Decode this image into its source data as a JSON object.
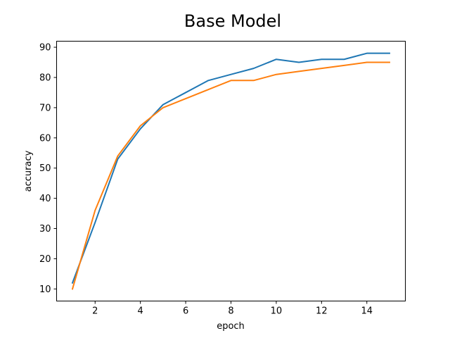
{
  "chart_data": {
    "type": "line",
    "title": "Base Model",
    "xlabel": "epoch",
    "ylabel": "accuracy",
    "xlim": [
      0.3,
      15.7
    ],
    "ylim": [
      6,
      92
    ],
    "xticks": [
      2,
      4,
      6,
      8,
      10,
      12,
      14
    ],
    "yticks": [
      10,
      20,
      30,
      40,
      50,
      60,
      70,
      80,
      90
    ],
    "grid": false,
    "x": [
      1,
      2,
      3,
      4,
      5,
      6,
      7,
      8,
      9,
      10,
      11,
      12,
      13,
      14,
      15
    ],
    "series": [
      {
        "color": "#1f77b4",
        "values": [
          12,
          32,
          53,
          63,
          71,
          75,
          79,
          81,
          83,
          86,
          85,
          86,
          86,
          88,
          88
        ]
      },
      {
        "color": "#ff7f0e",
        "values": [
          10,
          36,
          54,
          64,
          70,
          73,
          76,
          79,
          79,
          81,
          82,
          83,
          84,
          85,
          85
        ]
      }
    ]
  }
}
